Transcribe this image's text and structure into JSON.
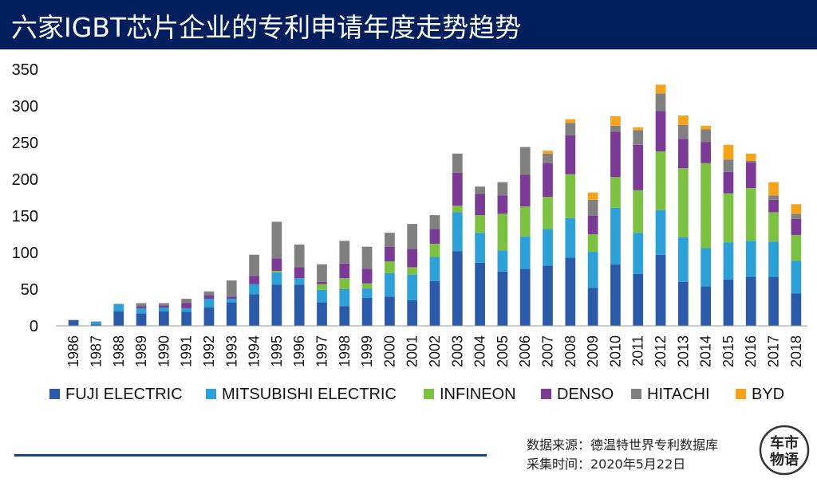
{
  "header": {
    "title": "六家IGBT芯片企业的专利申请年度走势趋势"
  },
  "colors": {
    "title_bg": "#001f5c",
    "FUJI ELECTRIC": "#2a5aa8",
    "MITSUBISHI ELECTRIC": "#2ea0d8",
    "INFINEON": "#7cc142",
    "DENSO": "#7b3a96",
    "HITACHI": "#808080",
    "BYD": "#f5a31a"
  },
  "chart_data": {
    "type": "bar",
    "stacked": true,
    "title": "",
    "xlabel": "",
    "ylabel": "",
    "ylim": [
      0,
      350
    ],
    "yticks": [
      0,
      50,
      100,
      150,
      200,
      250,
      300,
      350
    ],
    "grid": false,
    "legend": "bottom",
    "categories": [
      "1986",
      "1987",
      "1988",
      "1989",
      "1990",
      "1991",
      "1992",
      "1993",
      "1994",
      "1995",
      "1996",
      "1997",
      "1998",
      "1999",
      "2000",
      "2001",
      "2002",
      "2003",
      "2004",
      "2005",
      "2006",
      "2007",
      "2008",
      "2009",
      "2010",
      "2011",
      "2012",
      "2013",
      "2014",
      "2015",
      "2016",
      "2017",
      "2018"
    ],
    "series": [
      {
        "name": "FUJI ELECTRIC",
        "values": [
          8,
          2,
          20,
          17,
          20,
          19,
          25,
          32,
          43,
          56,
          56,
          32,
          27,
          38,
          40,
          35,
          61,
          102,
          86,
          74,
          78,
          82,
          93,
          52,
          84,
          71,
          97,
          60,
          54,
          63,
          67,
          67,
          44
        ]
      },
      {
        "name": "MITSUBISHI ELECTRIC",
        "values": [
          0,
          4,
          10,
          7,
          5,
          5,
          12,
          5,
          14,
          17,
          9,
          17,
          23,
          13,
          32,
          35,
          33,
          53,
          41,
          29,
          44,
          50,
          54,
          49,
          77,
          56,
          61,
          61,
          52,
          51,
          49,
          48,
          45
        ]
      },
      {
        "name": "INFINEON",
        "values": [
          0,
          0,
          0,
          0,
          0,
          0,
          0,
          0,
          0,
          2,
          0,
          8,
          15,
          7,
          16,
          10,
          18,
          9,
          24,
          50,
          41,
          44,
          60,
          24,
          42,
          58,
          80,
          94,
          116,
          67,
          72,
          40,
          35
        ]
      },
      {
        "name": "DENSO",
        "values": [
          0,
          0,
          0,
          3,
          3,
          7,
          5,
          3,
          11,
          17,
          15,
          3,
          20,
          20,
          20,
          25,
          20,
          45,
          29,
          25,
          43,
          46,
          53,
          25,
          62,
          62,
          55,
          40,
          29,
          29,
          35,
          17,
          22
        ]
      },
      {
        "name": "HITACHI",
        "values": [
          0,
          0,
          0,
          4,
          3,
          6,
          5,
          22,
          29,
          50,
          31,
          24,
          31,
          30,
          19,
          34,
          19,
          26,
          10,
          18,
          38,
          13,
          17,
          22,
          8,
          20,
          24,
          19,
          17,
          17,
          2,
          6,
          7
        ]
      },
      {
        "name": "BYD",
        "values": [
          0,
          0,
          0,
          0,
          0,
          0,
          0,
          0,
          0,
          0,
          0,
          0,
          0,
          0,
          0,
          0,
          0,
          0,
          0,
          0,
          0,
          4,
          5,
          10,
          13,
          4,
          12,
          13,
          5,
          20,
          10,
          18,
          13
        ]
      }
    ]
  },
  "footer": {
    "source": "数据来源：德温特世界专利数据库",
    "date": "采集时间：2020年5月22日"
  },
  "logo": {
    "line1": "车市",
    "line2": "物语"
  }
}
